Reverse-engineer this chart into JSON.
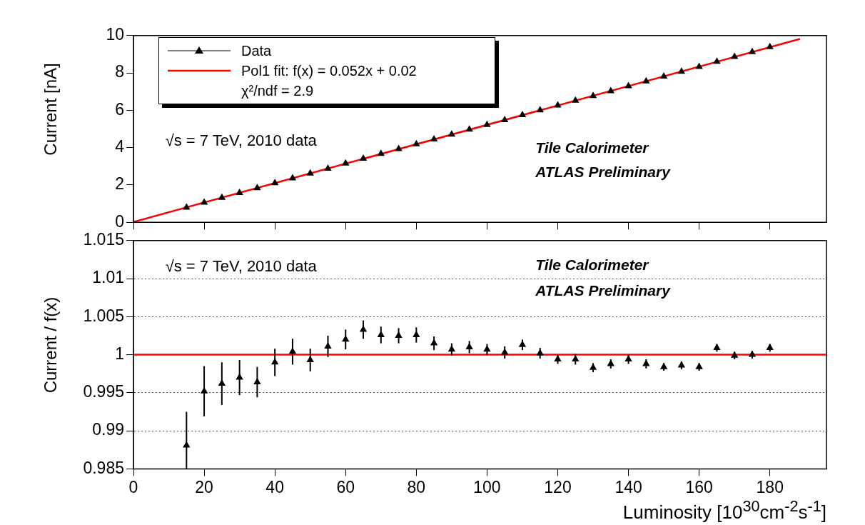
{
  "chart_data": [
    {
      "type": "scatter",
      "ylabel": "Current [nA]",
      "x": [
        15,
        20,
        25,
        30,
        35,
        40,
        45,
        50,
        55,
        60,
        65,
        70,
        75,
        80,
        85,
        90,
        95,
        100,
        105,
        110,
        115,
        120,
        125,
        130,
        135,
        140,
        145,
        150,
        155,
        160,
        165,
        170,
        175,
        180
      ],
      "xlim": [
        0,
        196
      ],
      "xticks": [
        0,
        20,
        40,
        60,
        80,
        100,
        120,
        140,
        160,
        180
      ],
      "ylim": [
        0,
        10
      ],
      "yticks": [
        0,
        2,
        4,
        6,
        8,
        10
      ],
      "tick_labels": "y",
      "legend": "top left",
      "series": [
        {
          "name": "Data",
          "color": "#000000",
          "marker": "triangle",
          "values": [
            0.79,
            1.06,
            1.32,
            1.58,
            1.83,
            2.1,
            2.36,
            2.62,
            2.88,
            3.15,
            3.41,
            3.67,
            3.93,
            4.19,
            4.45,
            4.7,
            4.97,
            5.22,
            5.48,
            5.75,
            6.0,
            6.26,
            6.52,
            6.77,
            7.03,
            7.3,
            7.55,
            7.81,
            8.07,
            8.33,
            8.61,
            8.86,
            9.12,
            9.39
          ]
        },
        {
          "name": "Pol1 fit: f(x) = 0.052x + 0.02",
          "type": "line",
          "color": "#ff0000",
          "x": [
            0,
            188.5
          ],
          "values": [
            0.02,
            9.82
          ]
        }
      ],
      "annotations": [
        "χ²/ndf = 2.9",
        "√s = 7 TeV, 2010 data",
        "Tile Calorimeter",
        "ATLAS Preliminary"
      ]
    },
    {
      "type": "scatter",
      "xlabel": "Luminosity [10$^{30}$cm$^{-2}$s$^{-1}$]",
      "ylabel": "Current / f(x)",
      "x": [
        15,
        20,
        25,
        30,
        35,
        40,
        45,
        50,
        55,
        60,
        65,
        70,
        75,
        80,
        85,
        90,
        95,
        100,
        105,
        110,
        115,
        120,
        125,
        130,
        135,
        140,
        145,
        150,
        155,
        160,
        165,
        170,
        175,
        180
      ],
      "values": [
        0.9881,
        0.9952,
        0.9962,
        0.997,
        0.9964,
        0.999,
        1.0004,
        0.9993,
        1.0011,
        1.002,
        1.0033,
        1.0026,
        1.0025,
        1.0026,
        1.0015,
        1.0007,
        1.001,
        1.0007,
        1.0003,
        1.0013,
        1.0002,
        0.9994,
        0.9994,
        0.9983,
        0.9988,
        0.9994,
        0.9988,
        0.9984,
        0.9986,
        0.9984,
        1.0009,
        0.9999,
        1.0,
        1.0009
      ],
      "errors": [
        [
          0.985,
          0.9925
        ],
        0.0033,
        0.0028,
        0.0023,
        0.002,
        0.0018,
        0.0017,
        0.0015,
        0.0014,
        0.0013,
        0.0012,
        0.0011,
        0.001,
        0.001,
        0.0009,
        0.0008,
        0.0008,
        0.0007,
        0.0008,
        0.0007,
        0.0007,
        0.0006,
        0.0007,
        0.0006,
        0.0006,
        0.0006,
        0.0006,
        0.0005,
        0.0005,
        0.0005,
        0.0005,
        0.0005,
        0.0005,
        0.0005
      ],
      "color": "#000000",
      "marker": "triangle",
      "xlim": [
        0,
        196
      ],
      "xticks": [
        0,
        20,
        40,
        60,
        80,
        100,
        120,
        140,
        160,
        180
      ],
      "ylim": [
        0.985,
        1.015
      ],
      "yticks": [
        0.985,
        0.99,
        0.995,
        1,
        1.005,
        1.01,
        1.015
      ],
      "grid": "y",
      "ref_lines": [
        {
          "axis": "y",
          "value": 1,
          "color": "#ff0000"
        }
      ],
      "annotations": [
        "√s = 7 TeV, 2010 data",
        "Tile Calorimeter",
        "ATLAS Preliminary"
      ]
    }
  ]
}
